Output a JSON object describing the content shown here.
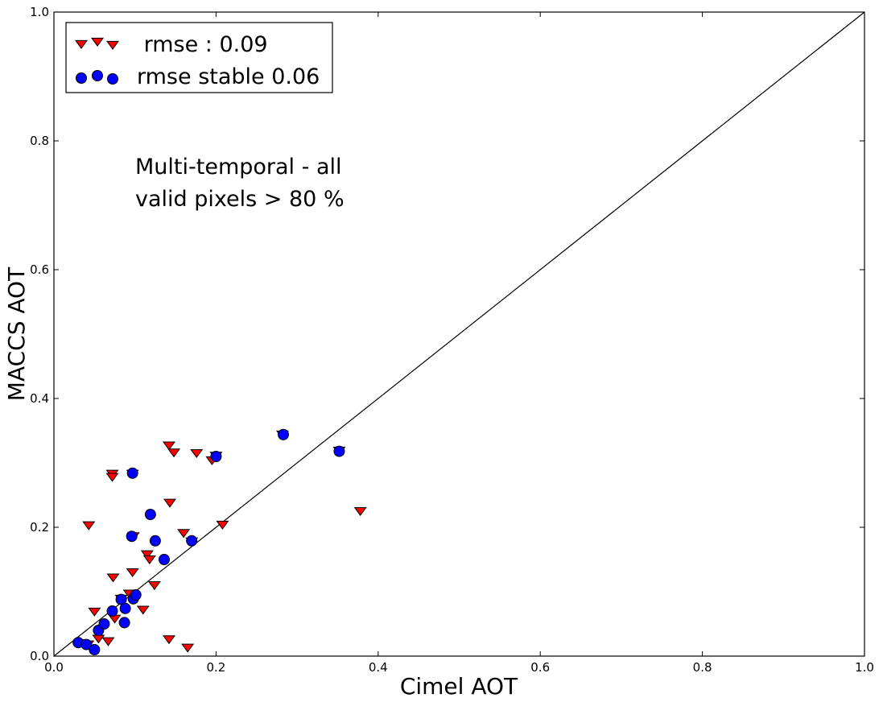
{
  "chart_data": {
    "type": "scatter",
    "xlabel": "Cimel AOT",
    "ylabel": "MACCS AOT",
    "xlim": [
      0.0,
      1.0
    ],
    "ylim": [
      0.0,
      1.0
    ],
    "x_ticks": [
      "0.0",
      "0.2",
      "0.4",
      "0.6",
      "0.8",
      "1.0"
    ],
    "y_ticks": [
      "0.0",
      "0.2",
      "0.4",
      "0.6",
      "0.8",
      "1.0"
    ],
    "grid": false,
    "legend_position": "top-left",
    "reference_line": {
      "label": "",
      "x": [
        0.0,
        1.0
      ],
      "y": [
        0.0,
        1.0
      ],
      "color": "#000000"
    },
    "annotation": [
      "Multi-temporal - all",
      "valid pixels > 80 %"
    ],
    "series": [
      {
        "name": " rmse : 0.09",
        "marker": "triangle-down",
        "color": "#ff0000",
        "points": [
          [
            0.035,
            0.021
          ],
          [
            0.042,
            0.019
          ],
          [
            0.043,
            0.204
          ],
          [
            0.05,
            0.07
          ],
          [
            0.055,
            0.028
          ],
          [
            0.067,
            0.024
          ],
          [
            0.072,
            0.284
          ],
          [
            0.072,
            0.279
          ],
          [
            0.073,
            0.123
          ],
          [
            0.075,
            0.059
          ],
          [
            0.083,
            0.09
          ],
          [
            0.093,
            0.098
          ],
          [
            0.097,
            0.284
          ],
          [
            0.097,
            0.131
          ],
          [
            0.098,
            0.187
          ],
          [
            0.11,
            0.073
          ],
          [
            0.115,
            0.159
          ],
          [
            0.118,
            0.151
          ],
          [
            0.124,
            0.111
          ],
          [
            0.142,
            0.328
          ],
          [
            0.143,
            0.239
          ],
          [
            0.148,
            0.317
          ],
          [
            0.142,
            0.027
          ],
          [
            0.16,
            0.192
          ],
          [
            0.165,
            0.014
          ],
          [
            0.17,
            0.179
          ],
          [
            0.176,
            0.316
          ],
          [
            0.195,
            0.305
          ],
          [
            0.2,
            0.312
          ],
          [
            0.208,
            0.205
          ],
          [
            0.282,
            0.345
          ],
          [
            0.352,
            0.32
          ],
          [
            0.378,
            0.226
          ]
        ]
      },
      {
        "name": "rmse stable 0.06",
        "marker": "circle",
        "color": "#0000ff",
        "points": [
          [
            0.03,
            0.021
          ],
          [
            0.04,
            0.018
          ],
          [
            0.05,
            0.01
          ],
          [
            0.055,
            0.04
          ],
          [
            0.062,
            0.05
          ],
          [
            0.072,
            0.07
          ],
          [
            0.083,
            0.088
          ],
          [
            0.087,
            0.052
          ],
          [
            0.088,
            0.074
          ],
          [
            0.096,
            0.186
          ],
          [
            0.097,
            0.284
          ],
          [
            0.098,
            0.089
          ],
          [
            0.101,
            0.095
          ],
          [
            0.119,
            0.22
          ],
          [
            0.125,
            0.179
          ],
          [
            0.136,
            0.15
          ],
          [
            0.17,
            0.179
          ],
          [
            0.2,
            0.31
          ],
          [
            0.283,
            0.344
          ],
          [
            0.352,
            0.318
          ]
        ]
      }
    ]
  }
}
